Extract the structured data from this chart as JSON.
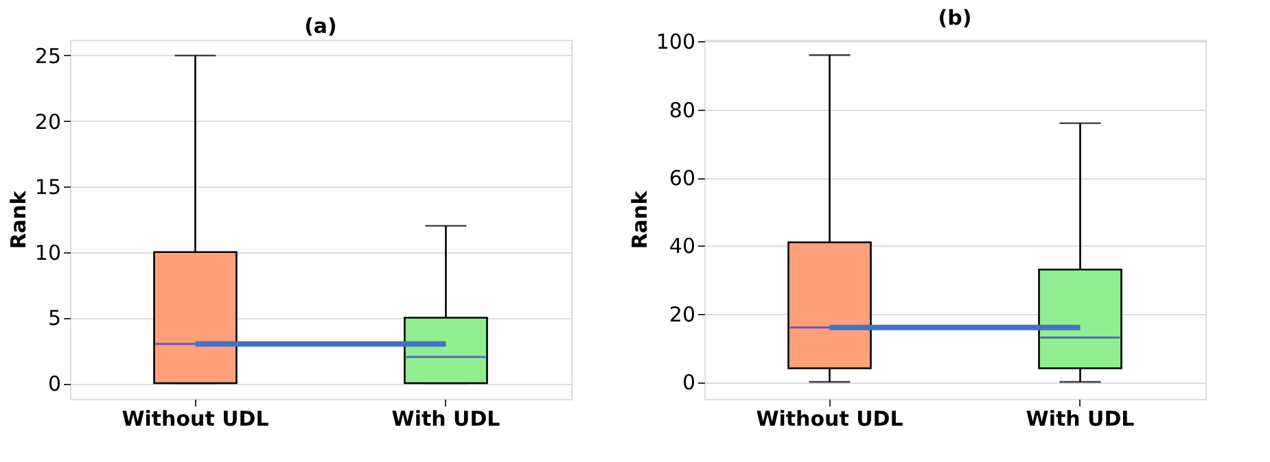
{
  "chart_data": [
    {
      "type": "box",
      "title": "(a)",
      "ylabel": "Rank",
      "categories": [
        "Without UDL",
        "With UDL"
      ],
      "boxes": [
        {
          "low": 0,
          "q1": 0,
          "median": 3,
          "q3": 10,
          "high": 25
        },
        {
          "low": 0,
          "q1": 0,
          "median": 2,
          "q3": 5,
          "high": 12
        }
      ],
      "colors": [
        "#ffa07a",
        "#90ee90"
      ],
      "series": [
        {
          "type": "line",
          "color": "#4472c4",
          "values": [
            3,
            3
          ]
        }
      ],
      "ylim": [
        -1.2,
        26.2
      ],
      "yticks": [
        0,
        5,
        10,
        15,
        20,
        25
      ],
      "grid": "y"
    },
    {
      "type": "box",
      "title": "(b)",
      "ylabel": "Rank",
      "categories": [
        "Without UDL",
        "With UDL"
      ],
      "boxes": [
        {
          "low": 0,
          "q1": 4,
          "median": 16,
          "q3": 41,
          "high": 96
        },
        {
          "low": 0,
          "q1": 4,
          "median": 13,
          "q3": 33,
          "high": 76
        }
      ],
      "colors": [
        "#ffa07a",
        "#90ee90"
      ],
      "series": [
        {
          "type": "line",
          "color": "#4472c4",
          "values": [
            16,
            16
          ]
        }
      ],
      "ylim": [
        -5,
        100.5
      ],
      "yticks": [
        0,
        20,
        40,
        60,
        80,
        100
      ],
      "grid": "y"
    }
  ]
}
